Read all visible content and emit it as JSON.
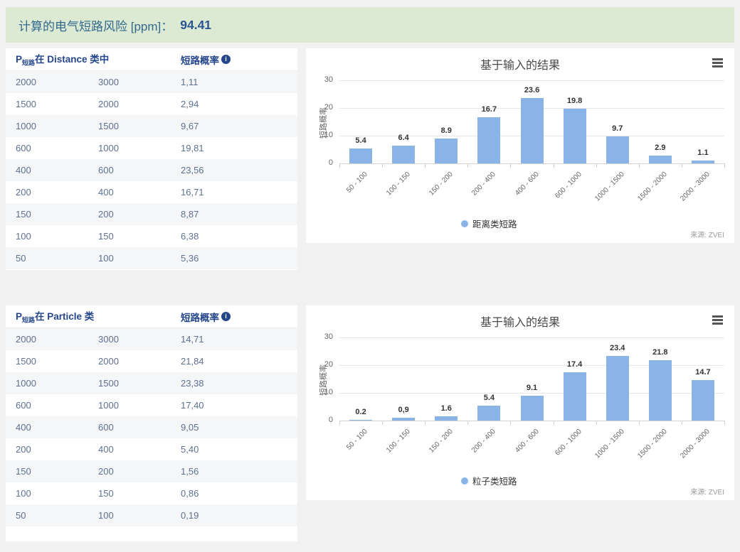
{
  "banner": {
    "label": "计算的电气短路风险 [ppm]：",
    "value": "94.41"
  },
  "sections": [
    {
      "table": {
        "header": {
          "p": "P",
          "p_sub": "短路",
          "title_rest": "在 Distance 类中",
          "prob_label": "短路概率",
          "info_icon_glyph": "i"
        },
        "rows": [
          [
            "2000",
            "3000",
            "1,11"
          ],
          [
            "1500",
            "2000",
            "2,94"
          ],
          [
            "1000",
            "1500",
            "9,67"
          ],
          [
            "600",
            "1000",
            "19,81"
          ],
          [
            "400",
            "600",
            "23,56"
          ],
          [
            "200",
            "400",
            "16,71"
          ],
          [
            "150",
            "200",
            "8,87"
          ],
          [
            "100",
            "150",
            "6,38"
          ],
          [
            "50",
            "100",
            "5,36"
          ]
        ]
      }
    },
    {
      "table": {
        "header": {
          "p": "P",
          "p_sub": "短路",
          "title_rest": "在 Particle 类",
          "prob_label": "短路概率",
          "info_icon_glyph": "i"
        },
        "rows": [
          [
            "2000",
            "3000",
            "14,71"
          ],
          [
            "1500",
            "2000",
            "21,84"
          ],
          [
            "1000",
            "1500",
            "23,38"
          ],
          [
            "600",
            "1000",
            "17,40"
          ],
          [
            "400",
            "600",
            "9,05"
          ],
          [
            "200",
            "400",
            "5,40"
          ],
          [
            "150",
            "200",
            "1,56"
          ],
          [
            "100",
            "150",
            "0,86"
          ],
          [
            "50",
            "100",
            "0,19"
          ]
        ]
      }
    }
  ],
  "chart_data": [
    {
      "type": "bar",
      "title": "基于输入的结果",
      "ylabel": "短路概率",
      "categories": [
        "50 - 100",
        "100 - 150",
        "150 - 200",
        "200 - 400",
        "400 - 600",
        "600 - 1000",
        "1000 - 1500",
        "1500 - 2000",
        "2000 - 3000"
      ],
      "values": [
        5.4,
        6.4,
        8.9,
        16.7,
        23.6,
        19.8,
        9.7,
        2.9,
        1.1
      ],
      "value_labels": [
        "5.4",
        "6.4",
        "8.9",
        "16.7",
        "23.6",
        "19.8",
        "9.7",
        "2.9",
        "1.1"
      ],
      "legend": "距离类短路",
      "source": "来源: ZVEI",
      "ylim": [
        0,
        30
      ],
      "yticks": [
        0,
        10,
        20,
        30
      ],
      "bar_color": "#8ab4e8",
      "grid": true,
      "legend_position": "bottom"
    },
    {
      "type": "bar",
      "title": "基于输入的结果",
      "ylabel": "短路概率",
      "categories": [
        "50 - 100",
        "100 - 150",
        "150 - 200",
        "200 - 400",
        "400 - 600",
        "600 - 1000",
        "1000 - 1500",
        "1500 - 2000",
        "2000 - 3000"
      ],
      "values": [
        0.2,
        0.9,
        1.6,
        5.4,
        9.1,
        17.4,
        23.4,
        21.8,
        14.7
      ],
      "value_labels": [
        "0.2",
        "0,9",
        "1.6",
        "5.4",
        "9.1",
        "17.4",
        "23.4",
        "21.8",
        "14.7"
      ],
      "legend": "粒子类短路",
      "source": "来源: ZVEI",
      "ylim": [
        0,
        30
      ],
      "yticks": [
        0,
        10,
        20,
        30
      ],
      "bar_color": "#8ab4e8",
      "grid": true,
      "legend_position": "bottom"
    }
  ],
  "colors": {
    "accent_blue": "#8ab4e8",
    "banner_bg": "#dcead3",
    "header_text": "#26468b",
    "table_text": "#5e7192",
    "page_bg": "#f1f1f1"
  }
}
